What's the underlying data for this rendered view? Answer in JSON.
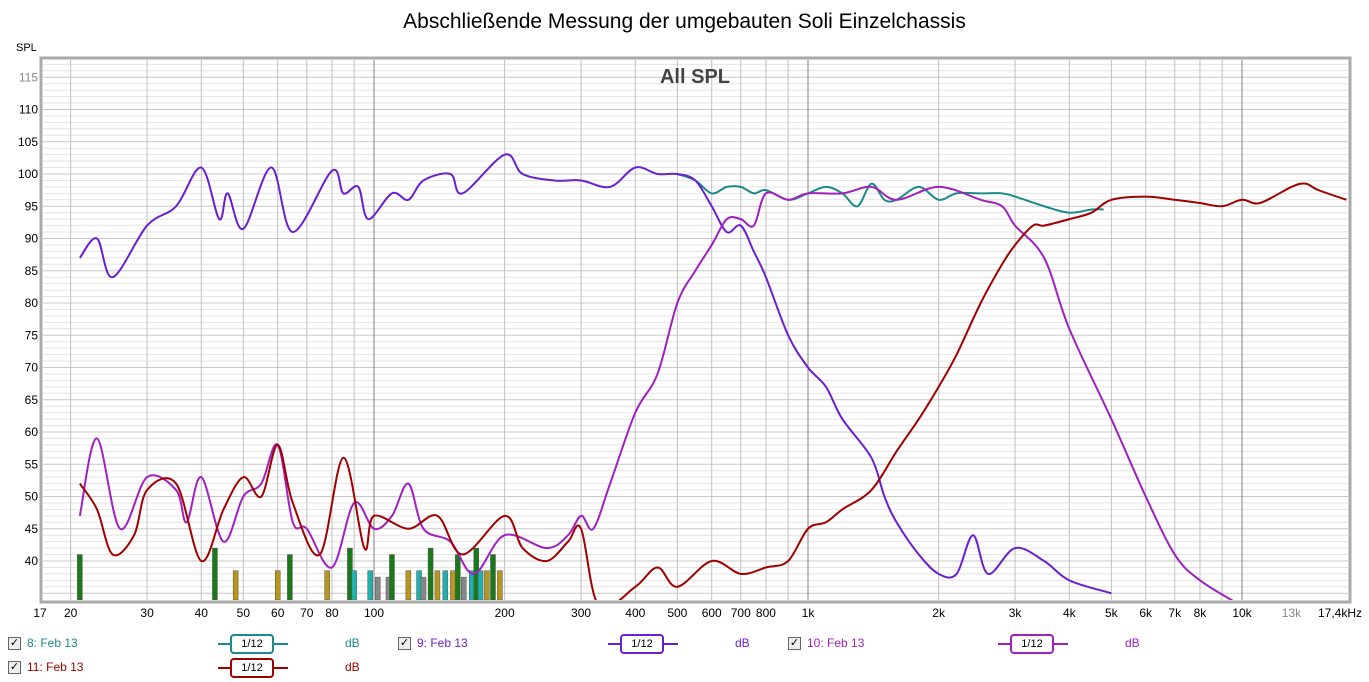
{
  "chart_data": {
    "type": "line",
    "title": "Abschließende Messung der umgebauten Soli Einzelchassis",
    "overlay_title": "All SPL",
    "ylabel": "SPL",
    "xscale": "log",
    "xlim": [
      17,
      17400
    ],
    "ylim": [
      34,
      117.7
    ],
    "grid": true,
    "y_ticks": [
      "40",
      "45",
      "50",
      "55",
      "60",
      "65",
      "70",
      "75",
      "80",
      "85",
      "90",
      "95",
      "100",
      "105",
      "110",
      "115"
    ],
    "x_ticks": [
      {
        "f": 17,
        "label": "17"
      },
      {
        "f": 20,
        "label": "20"
      },
      {
        "f": 30,
        "label": "30"
      },
      {
        "f": 40,
        "label": "40"
      },
      {
        "f": 50,
        "label": "50"
      },
      {
        "f": 60,
        "label": "60"
      },
      {
        "f": 70,
        "label": "70"
      },
      {
        "f": 80,
        "label": "80"
      },
      {
        "f": 100,
        "label": "100"
      },
      {
        "f": 200,
        "label": "200"
      },
      {
        "f": 300,
        "label": "300"
      },
      {
        "f": 400,
        "label": "400"
      },
      {
        "f": 500,
        "label": "500"
      },
      {
        "f": 600,
        "label": "600"
      },
      {
        "f": 700,
        "label": "700"
      },
      {
        "f": 800,
        "label": "800"
      },
      {
        "f": 1000,
        "label": "1k"
      },
      {
        "f": 2000,
        "label": "2k"
      },
      {
        "f": 3000,
        "label": "3k"
      },
      {
        "f": 4000,
        "label": "4k"
      },
      {
        "f": 5000,
        "label": "5k"
      },
      {
        "f": 6000,
        "label": "6k"
      },
      {
        "f": 7000,
        "label": "7k"
      },
      {
        "f": 8000,
        "label": "8k"
      },
      {
        "f": 10000,
        "label": "10k"
      },
      {
        "f": 13000,
        "label": "13k"
      },
      {
        "f": 17400,
        "label": "17,4kHz"
      }
    ],
    "series": [
      {
        "name": "8: Feb 13",
        "color": "#1a8a8a",
        "smoothing": "1/12",
        "unit": "dB",
        "points": [
          [
            500,
            100
          ],
          [
            550,
            99
          ],
          [
            600,
            97
          ],
          [
            650,
            98
          ],
          [
            700,
            98
          ],
          [
            750,
            97
          ],
          [
            800,
            97.5
          ],
          [
            900,
            96
          ],
          [
            1000,
            97
          ],
          [
            1100,
            98
          ],
          [
            1200,
            97
          ],
          [
            1300,
            95
          ],
          [
            1400,
            98.5
          ],
          [
            1500,
            96
          ],
          [
            1600,
            96
          ],
          [
            1800,
            98
          ],
          [
            2000,
            96
          ],
          [
            2200,
            97
          ],
          [
            2500,
            97
          ],
          [
            2800,
            97
          ],
          [
            3000,
            96.5
          ],
          [
            3500,
            95
          ],
          [
            4000,
            94
          ],
          [
            4500,
            94.5
          ],
          [
            4800,
            94.5
          ]
        ]
      },
      {
        "name": "9: Feb 13",
        "color": "#6a1fd0",
        "smoothing": "1/12",
        "unit": "dB",
        "points": [
          [
            21,
            87
          ],
          [
            23,
            90
          ],
          [
            25,
            84
          ],
          [
            30,
            92
          ],
          [
            35,
            95
          ],
          [
            40,
            101
          ],
          [
            44,
            93
          ],
          [
            46,
            97
          ],
          [
            50,
            91.5
          ],
          [
            58,
            101
          ],
          [
            65,
            91
          ],
          [
            80,
            100.5
          ],
          [
            85,
            97
          ],
          [
            92,
            98
          ],
          [
            97,
            93
          ],
          [
            110,
            97
          ],
          [
            120,
            96
          ],
          [
            130,
            99
          ],
          [
            150,
            100
          ],
          [
            160,
            97
          ],
          [
            200,
            103
          ],
          [
            220,
            100
          ],
          [
            260,
            99
          ],
          [
            300,
            99
          ],
          [
            350,
            98
          ],
          [
            400,
            101
          ],
          [
            450,
            100
          ],
          [
            500,
            100
          ],
          [
            550,
            99
          ],
          [
            600,
            95
          ],
          [
            650,
            91
          ],
          [
            700,
            92
          ],
          [
            750,
            88
          ],
          [
            800,
            84
          ],
          [
            900,
            75
          ],
          [
            1000,
            70
          ],
          [
            1100,
            67
          ],
          [
            1200,
            62
          ],
          [
            1400,
            56
          ],
          [
            1500,
            50
          ],
          [
            1600,
            46
          ],
          [
            1800,
            41
          ],
          [
            2000,
            38
          ],
          [
            2200,
            38
          ],
          [
            2400,
            44
          ],
          [
            2600,
            38
          ],
          [
            3000,
            42
          ],
          [
            3500,
            40
          ],
          [
            4000,
            37
          ],
          [
            5000,
            35
          ]
        ]
      },
      {
        "name": "10: Feb 13",
        "color": "#a020c0",
        "smoothing": "1/12",
        "unit": "dB",
        "points": [
          [
            21,
            47
          ],
          [
            23,
            59
          ],
          [
            26,
            45
          ],
          [
            30,
            53
          ],
          [
            35,
            51
          ],
          [
            37,
            46
          ],
          [
            40,
            53
          ],
          [
            45,
            43
          ],
          [
            50,
            50
          ],
          [
            55,
            52
          ],
          [
            60,
            58
          ],
          [
            65,
            46
          ],
          [
            70,
            45
          ],
          [
            80,
            39
          ],
          [
            90,
            49
          ],
          [
            100,
            45
          ],
          [
            110,
            47
          ],
          [
            120,
            52
          ],
          [
            130,
            45
          ],
          [
            150,
            43
          ],
          [
            170,
            38
          ],
          [
            200,
            44
          ],
          [
            250,
            42
          ],
          [
            280,
            44
          ],
          [
            300,
            47
          ],
          [
            320,
            45
          ],
          [
            350,
            52
          ],
          [
            400,
            63
          ],
          [
            450,
            69
          ],
          [
            500,
            80
          ],
          [
            550,
            85
          ],
          [
            600,
            89
          ],
          [
            650,
            93
          ],
          [
            700,
            93
          ],
          [
            750,
            92
          ],
          [
            800,
            97
          ],
          [
            900,
            96
          ],
          [
            1000,
            97
          ],
          [
            1200,
            97
          ],
          [
            1400,
            98
          ],
          [
            1600,
            96
          ],
          [
            2000,
            98
          ],
          [
            2500,
            96
          ],
          [
            2800,
            95
          ],
          [
            3000,
            92
          ],
          [
            3500,
            87
          ],
          [
            4000,
            76
          ],
          [
            5000,
            62
          ],
          [
            6000,
            50
          ],
          [
            7000,
            41
          ],
          [
            8000,
            37
          ],
          [
            10000,
            33
          ]
        ]
      },
      {
        "name": "11: Feb 13",
        "color": "#a00000",
        "smoothing": "1/12",
        "unit": "dB",
        "points": [
          [
            21,
            52
          ],
          [
            23,
            48
          ],
          [
            25,
            41
          ],
          [
            28,
            44
          ],
          [
            30,
            51
          ],
          [
            35,
            52
          ],
          [
            40,
            40
          ],
          [
            45,
            48
          ],
          [
            50,
            53
          ],
          [
            55,
            50
          ],
          [
            60,
            58
          ],
          [
            65,
            49
          ],
          [
            75,
            41
          ],
          [
            85,
            56
          ],
          [
            95,
            42
          ],
          [
            100,
            47
          ],
          [
            120,
            45
          ],
          [
            140,
            47
          ],
          [
            160,
            41
          ],
          [
            200,
            47
          ],
          [
            220,
            42
          ],
          [
            250,
            40
          ],
          [
            280,
            43
          ],
          [
            300,
            45
          ],
          [
            330,
            33
          ],
          [
            400,
            36
          ],
          [
            450,
            39
          ],
          [
            500,
            36
          ],
          [
            600,
            40
          ],
          [
            700,
            38
          ],
          [
            800,
            39
          ],
          [
            900,
            40
          ],
          [
            1000,
            45
          ],
          [
            1100,
            46
          ],
          [
            1200,
            48
          ],
          [
            1400,
            51
          ],
          [
            1600,
            57
          ],
          [
            1800,
            62
          ],
          [
            2000,
            67
          ],
          [
            2200,
            72
          ],
          [
            2500,
            80
          ],
          [
            2800,
            86
          ],
          [
            3000,
            89
          ],
          [
            3300,
            92
          ],
          [
            3500,
            92
          ],
          [
            4000,
            93
          ],
          [
            4500,
            94
          ],
          [
            5000,
            96
          ],
          [
            6000,
            96.5
          ],
          [
            7000,
            96
          ],
          [
            8000,
            95.5
          ],
          [
            9000,
            95
          ],
          [
            10000,
            96
          ],
          [
            11000,
            95.5
          ],
          [
            13000,
            98
          ],
          [
            14000,
            98.5
          ],
          [
            15000,
            97.5
          ],
          [
            17400,
            96
          ]
        ]
      }
    ],
    "bars": [
      {
        "f": 21,
        "v": 41,
        "color": "#1a7a1a"
      },
      {
        "f": 43,
        "v": 42,
        "color": "#1a7a1a"
      },
      {
        "f": 48,
        "v": 38.5,
        "color": "#b8961e"
      },
      {
        "f": 60,
        "v": 38.5,
        "color": "#b8961e"
      },
      {
        "f": 64,
        "v": 41,
        "color": "#1a7a1a"
      },
      {
        "f": 78,
        "v": 38.5,
        "color": "#b8961e"
      },
      {
        "f": 88,
        "v": 42,
        "color": "#1a7a1a"
      },
      {
        "f": 90,
        "v": 38.5,
        "color": "#20b0b0"
      },
      {
        "f": 98,
        "v": 38.5,
        "color": "#20b0b0"
      },
      {
        "f": 102,
        "v": 37.5,
        "color": "#888888"
      },
      {
        "f": 108,
        "v": 37.5,
        "color": "#888888"
      },
      {
        "f": 110,
        "v": 41,
        "color": "#1a7a1a"
      },
      {
        "f": 120,
        "v": 38.5,
        "color": "#b8961e"
      },
      {
        "f": 127,
        "v": 38.5,
        "color": "#20b0b0"
      },
      {
        "f": 130,
        "v": 37.5,
        "color": "#888888"
      },
      {
        "f": 135,
        "v": 42,
        "color": "#1a7a1a"
      },
      {
        "f": 140,
        "v": 38.5,
        "color": "#b8961e"
      },
      {
        "f": 146,
        "v": 38.5,
        "color": "#20b0b0"
      },
      {
        "f": 152,
        "v": 38.5,
        "color": "#b8961e"
      },
      {
        "f": 156,
        "v": 41,
        "color": "#1a7a1a"
      },
      {
        "f": 161,
        "v": 37.5,
        "color": "#888888"
      },
      {
        "f": 168,
        "v": 38.5,
        "color": "#20b0b0"
      },
      {
        "f": 172,
        "v": 42,
        "color": "#1a7a1a"
      },
      {
        "f": 176,
        "v": 38.5,
        "color": "#20b0b0"
      },
      {
        "f": 182,
        "v": 38.5,
        "color": "#b8961e"
      },
      {
        "f": 188,
        "v": 41,
        "color": "#1a7a1a"
      },
      {
        "f": 195,
        "v": 38.5,
        "color": "#b8961e"
      }
    ]
  },
  "legend": [
    {
      "label": "8: Feb 13",
      "smoothing": "1/12",
      "unit": "dB",
      "checked": true
    },
    {
      "label": "9: Feb 13",
      "smoothing": "1/12",
      "unit": "dB",
      "checked": true
    },
    {
      "label": "10: Feb 13",
      "smoothing": "1/12",
      "unit": "dB",
      "checked": true
    },
    {
      "label": "11: Feb 13",
      "smoothing": "1/12",
      "unit": "dB",
      "checked": true
    }
  ]
}
